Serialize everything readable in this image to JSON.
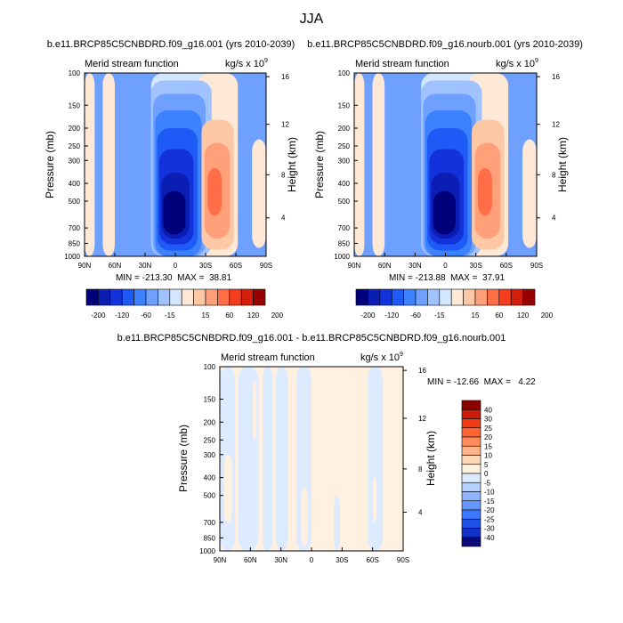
{
  "page_title": "JJA",
  "palette": {
    "main": [
      "#00007a",
      "#0a1eb4",
      "#1432dc",
      "#1e5af5",
      "#3c82ff",
      "#6ea0ff",
      "#a0c3ff",
      "#d2e6ff",
      "#ffe8d6",
      "#ffc8a5",
      "#ffa07a",
      "#ff6e46",
      "#f53c1e",
      "#d21e0a",
      "#960000"
    ],
    "diff": [
      "#0a0a78",
      "#1432c8",
      "#1e50e6",
      "#3c78ff",
      "#6496ff",
      "#8cb4ff",
      "#b4d2ff",
      "#dcebff",
      "#fff0e0",
      "#ffd7b9",
      "#ffb48c",
      "#ff8c5a",
      "#ff6432",
      "#f03c14",
      "#c81e0a",
      "#8c0000"
    ]
  },
  "chart_data": [
    {
      "type": "heatmap",
      "title": "b.e11.BRCP85C5CNBDRD.f09_g16.001 (yrs 2010-2039)",
      "left_label": "Merid stream function",
      "units_label": "kg/s x 10",
      "units_exp": "9",
      "ylabel": "Pressure (mb)",
      "ylabel2": "Height (km)",
      "xticks": [
        "90N",
        "60N",
        "30N",
        "0",
        "30S",
        "60S",
        "90S"
      ],
      "yticks": [
        "100",
        "150",
        "200",
        "250",
        "300",
        "400",
        "500",
        "700",
        "850",
        "1000"
      ],
      "yticks2": [
        "16",
        "12",
        "8",
        "4"
      ],
      "stats": "MIN = -213.30  MAX =  38.81",
      "colorbar_labels": [
        "-200",
        "-120",
        "-60",
        "-15",
        "15",
        "60",
        "120",
        "200"
      ],
      "min": -213.3,
      "max": 38.81,
      "background_level": "5",
      "cells": [
        {
          "level": "8",
          "lat": [
            -90,
            -80
          ],
          "p": [
            100,
            1000
          ]
        },
        {
          "level": "8",
          "lat": [
            -72,
            -60
          ],
          "p": [
            100,
            1000
          ]
        },
        {
          "level": "7",
          "lat": [
            -24,
            52
          ],
          "p": [
            100,
            1000
          ]
        },
        {
          "level": "8",
          "lat": [
            22,
            62
          ],
          "p": [
            100,
            1000
          ]
        },
        {
          "level": "8",
          "lat": [
            76,
            90
          ],
          "p": [
            230,
            900
          ]
        },
        {
          "level": "6",
          "lat": [
            -24,
            36
          ],
          "p": [
            110,
            1000
          ]
        },
        {
          "level": "5",
          "lat": [
            -22,
            30
          ],
          "p": [
            130,
            1000
          ]
        },
        {
          "level": "4",
          "lat": [
            -20,
            26
          ],
          "p": [
            160,
            1000
          ]
        },
        {
          "level": "3",
          "lat": [
            -18,
            22
          ],
          "p": [
            200,
            930
          ]
        },
        {
          "level": "2",
          "lat": [
            -16,
            18
          ],
          "p": [
            260,
            860
          ]
        },
        {
          "level": "1",
          "lat": [
            -14,
            14
          ],
          "p": [
            350,
            800
          ]
        },
        {
          "level": "0",
          "lat": [
            -12,
            10
          ],
          "p": [
            440,
            760
          ]
        },
        {
          "level": "9",
          "lat": [
            26,
            58
          ],
          "p": [
            180,
            920
          ]
        },
        {
          "level": "10",
          "lat": [
            29,
            54
          ],
          "p": [
            240,
            800
          ]
        },
        {
          "level": "11",
          "lat": [
            32,
            46
          ],
          "p": [
            330,
            600
          ]
        }
      ]
    },
    {
      "type": "heatmap",
      "title": "b.e11.BRCP85C5CNBDRD.f09_g16.nourb.001 (yrs 2010-2039)",
      "left_label": "Merid stream function",
      "units_label": "kg/s x 10",
      "units_exp": "9",
      "ylabel": "Pressure (mb)",
      "ylabel2": "Height (km)",
      "xticks": [
        "90N",
        "60N",
        "30N",
        "0",
        "30S",
        "60S",
        "90S"
      ],
      "yticks": [
        "100",
        "150",
        "200",
        "250",
        "300",
        "400",
        "500",
        "700",
        "850",
        "1000"
      ],
      "yticks2": [
        "16",
        "12",
        "8",
        "4"
      ],
      "stats": "MIN = -213.88  MAX =  37.91",
      "colorbar_labels": [
        "-200",
        "-120",
        "-60",
        "-15",
        "15",
        "60",
        "120",
        "200"
      ],
      "min": -213.88,
      "max": 37.91,
      "background_level": "5",
      "cells": [
        {
          "level": "8",
          "lat": [
            -90,
            -80
          ],
          "p": [
            100,
            1000
          ]
        },
        {
          "level": "8",
          "lat": [
            -72,
            -60
          ],
          "p": [
            100,
            1000
          ]
        },
        {
          "level": "7",
          "lat": [
            -24,
            52
          ],
          "p": [
            100,
            1000
          ]
        },
        {
          "level": "8",
          "lat": [
            22,
            62
          ],
          "p": [
            100,
            1000
          ]
        },
        {
          "level": "8",
          "lat": [
            76,
            90
          ],
          "p": [
            230,
            900
          ]
        },
        {
          "level": "6",
          "lat": [
            -24,
            36
          ],
          "p": [
            110,
            1000
          ]
        },
        {
          "level": "5",
          "lat": [
            -22,
            30
          ],
          "p": [
            130,
            1000
          ]
        },
        {
          "level": "4",
          "lat": [
            -20,
            26
          ],
          "p": [
            160,
            1000
          ]
        },
        {
          "level": "3",
          "lat": [
            -18,
            22
          ],
          "p": [
            200,
            930
          ]
        },
        {
          "level": "2",
          "lat": [
            -16,
            18
          ],
          "p": [
            260,
            860
          ]
        },
        {
          "level": "1",
          "lat": [
            -14,
            14
          ],
          "p": [
            350,
            800
          ]
        },
        {
          "level": "0",
          "lat": [
            -12,
            10
          ],
          "p": [
            440,
            760
          ]
        },
        {
          "level": "9",
          "lat": [
            26,
            58
          ],
          "p": [
            180,
            920
          ]
        },
        {
          "level": "10",
          "lat": [
            29,
            54
          ],
          "p": [
            240,
            800
          ]
        },
        {
          "level": "11",
          "lat": [
            32,
            46
          ],
          "p": [
            330,
            600
          ]
        }
      ]
    },
    {
      "type": "heatmap",
      "title": "b.e11.BRCP85C5CNBDRD.f09_g16.001 - b.e11.BRCP85C5CNBDRD.f09_g16.nourb.001",
      "left_label": "Merid stream function",
      "units_label": "kg/s x 10",
      "units_exp": "9",
      "ylabel": "Pressure (mb)",
      "ylabel2": "Height (km)",
      "xticks": [
        "90N",
        "60N",
        "30N",
        "0",
        "30S",
        "60S",
        "90S"
      ],
      "yticks": [
        "100",
        "150",
        "200",
        "250",
        "300",
        "400",
        "500",
        "700",
        "850",
        "1000"
      ],
      "yticks2": [
        "16",
        "12",
        "8",
        "4"
      ],
      "stats": "MIN = -12.66  MAX =   4.22",
      "colorbar_labels": [
        "40",
        "30",
        "25",
        "20",
        "15",
        "10",
        "5",
        "0",
        "-5",
        "-10",
        "-15",
        "-20",
        "-25",
        "-30",
        "-40"
      ],
      "min": -12.66,
      "max": 4.22,
      "background_level": "8",
      "cells": [
        {
          "level": "7",
          "lat": [
            -90,
            -75
          ],
          "p": [
            100,
            1000
          ]
        },
        {
          "level": "7",
          "lat": [
            -72,
            -52
          ],
          "p": [
            100,
            1000
          ]
        },
        {
          "level": "7",
          "lat": [
            -48,
            -38
          ],
          "p": [
            100,
            1000
          ]
        },
        {
          "level": "7",
          "lat": [
            -35,
            -23
          ],
          "p": [
            100,
            1000
          ]
        },
        {
          "level": "7",
          "lat": [
            -15,
            0
          ],
          "p": [
            100,
            1000
          ]
        },
        {
          "level": "7",
          "lat": [
            22,
            28
          ],
          "p": [
            500,
            1000
          ]
        },
        {
          "level": "7",
          "lat": [
            55,
            70
          ],
          "p": [
            100,
            1000
          ]
        },
        {
          "level": "8",
          "lat": [
            -86,
            -78
          ],
          "p": [
            300,
            700
          ]
        },
        {
          "level": "8",
          "lat": [
            -58,
            -54
          ],
          "p": [
            120,
            250
          ]
        },
        {
          "level": "8",
          "lat": [
            -10,
            -4
          ],
          "p": [
            450,
            950
          ]
        },
        {
          "level": "8",
          "lat": [
            60,
            64
          ],
          "p": [
            400,
            700
          ]
        }
      ]
    }
  ]
}
